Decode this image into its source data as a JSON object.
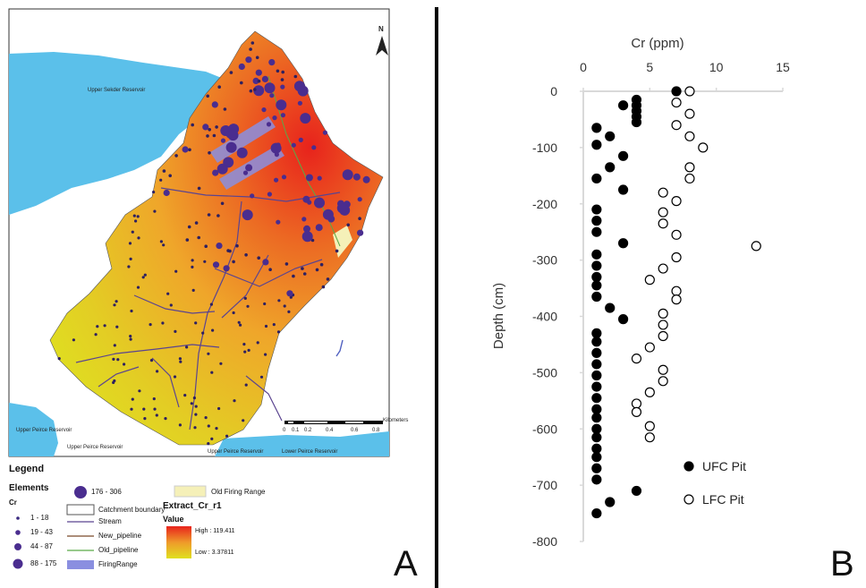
{
  "panel_labels": {
    "a": "A",
    "b": "B"
  },
  "map": {
    "north": "N",
    "places": [
      "Upper Sekder Reservoir",
      "Upper Peirce Reservoir",
      "Upper Peirce Reservoir",
      "Upper Peirce Reservoir",
      "Lower Peirce Reservoir"
    ],
    "scale_unit": "Kilometers",
    "scale_ticks": [
      "0",
      "0.1",
      "0.2",
      "0.4",
      "0.6",
      "0.8"
    ],
    "legend": {
      "title": "Legend",
      "elements_title": "Elements",
      "cr_label": "Cr",
      "classes": [
        "1 - 18",
        "19 - 43",
        "44 - 87",
        "88 - 175",
        "176 - 306"
      ],
      "catchment": "Catchment boundary",
      "stream": "Stream",
      "new_pipeline": "New_pipeline",
      "old_pipeline": "Old_pipeline",
      "firing_range": "FiringRange",
      "old_firing_range": "Old Firing Range",
      "raster_title": "Extract_Cr_r1",
      "value_label": "Value",
      "high": "High : 119.411",
      "low": "Low : 3.37811"
    },
    "colors": {
      "water": "#5bc0ea",
      "high": "#e8231c",
      "mid": "#ef9a2a",
      "low": "#e0e020",
      "point": "#4a2d8f",
      "firing": "#8a8fe0",
      "old_firing": "#f5f0b8"
    }
  },
  "chart_data": {
    "type": "scatter",
    "title": "Cr (ppm)",
    "xlabel": "Cr (ppm)",
    "ylabel": "Depth (cm)",
    "xlim": [
      0,
      15
    ],
    "ylim": [
      -800,
      0
    ],
    "x_ticks": [
      "0",
      "5",
      "10",
      "15"
    ],
    "y_ticks": [
      "0",
      "-100",
      "-200",
      "-300",
      "-400",
      "-500",
      "-600",
      "-700",
      "-800"
    ],
    "legend_position": "bottom-right",
    "series": [
      {
        "name": "UFC Pit",
        "marker": "filled",
        "points": [
          [
            7,
            0
          ],
          [
            3,
            -25
          ],
          [
            4,
            -15
          ],
          [
            4,
            -25
          ],
          [
            4,
            -35
          ],
          [
            4,
            -45
          ],
          [
            4,
            -55
          ],
          [
            1,
            -65
          ],
          [
            2,
            -80
          ],
          [
            1,
            -95
          ],
          [
            3,
            -115
          ],
          [
            2,
            -135
          ],
          [
            1,
            -155
          ],
          [
            3,
            -175
          ],
          [
            1,
            -210
          ],
          [
            1,
            -230
          ],
          [
            1,
            -250
          ],
          [
            3,
            -270
          ],
          [
            1,
            -290
          ],
          [
            1,
            -310
          ],
          [
            1,
            -330
          ],
          [
            1,
            -345
          ],
          [
            1,
            -365
          ],
          [
            2,
            -385
          ],
          [
            3,
            -405
          ],
          [
            1,
            -430
          ],
          [
            1,
            -445
          ],
          [
            1,
            -465
          ],
          [
            1,
            -485
          ],
          [
            1,
            -505
          ],
          [
            1,
            -525
          ],
          [
            1,
            -545
          ],
          [
            1,
            -565
          ],
          [
            1,
            -580
          ],
          [
            1,
            -600
          ],
          [
            1,
            -615
          ],
          [
            1,
            -635
          ],
          [
            1,
            -650
          ],
          [
            1,
            -670
          ],
          [
            1,
            -690
          ],
          [
            4,
            -710
          ],
          [
            2,
            -730
          ],
          [
            1,
            -750
          ]
        ]
      },
      {
        "name": "LFC Pit",
        "marker": "open",
        "points": [
          [
            8,
            0
          ],
          [
            7,
            -20
          ],
          [
            8,
            -40
          ],
          [
            7,
            -60
          ],
          [
            8,
            -80
          ],
          [
            9,
            -100
          ],
          [
            8,
            -135
          ],
          [
            8,
            -155
          ],
          [
            6,
            -180
          ],
          [
            7,
            -195
          ],
          [
            6,
            -215
          ],
          [
            6,
            -235
          ],
          [
            7,
            -255
          ],
          [
            13,
            -275
          ],
          [
            7,
            -295
          ],
          [
            6,
            -315
          ],
          [
            5,
            -335
          ],
          [
            7,
            -355
          ],
          [
            7,
            -370
          ],
          [
            6,
            -395
          ],
          [
            6,
            -415
          ],
          [
            6,
            -435
          ],
          [
            5,
            -455
          ],
          [
            4,
            -475
          ],
          [
            6,
            -495
          ],
          [
            6,
            -515
          ],
          [
            5,
            -535
          ],
          [
            4,
            -555
          ],
          [
            4,
            -570
          ],
          [
            5,
            -595
          ],
          [
            5,
            -615
          ]
        ]
      }
    ]
  }
}
